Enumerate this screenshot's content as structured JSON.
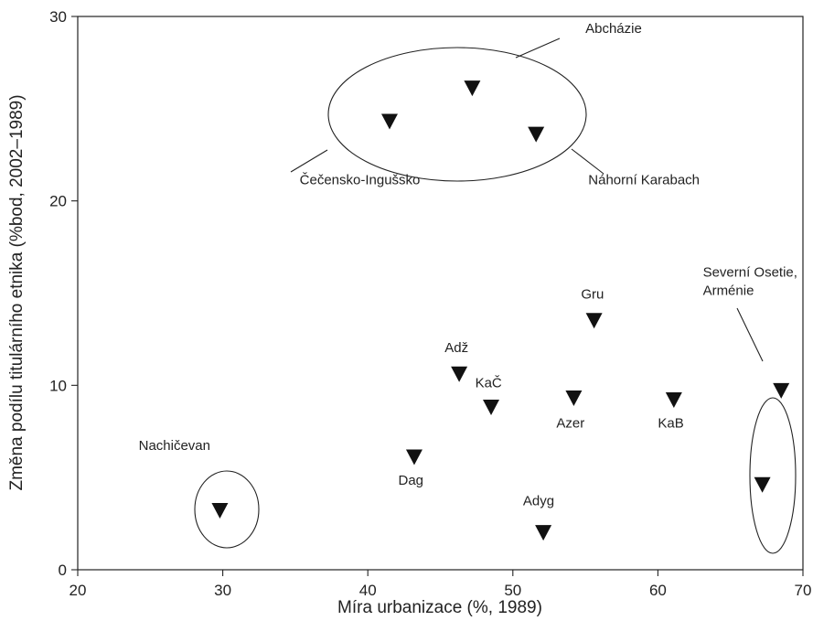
{
  "chart_data": {
    "type": "scatter",
    "xlabel": "Míra urbanizace (%, 1989)",
    "ylabel": "Změna podílu titulárního etnika (%bod, 2002–1989)",
    "xlim": [
      20,
      70
    ],
    "ylim": [
      0,
      30
    ],
    "xticks": [
      "20",
      "30",
      "40",
      "50",
      "60",
      "70"
    ],
    "yticks": [
      "0",
      "10",
      "20",
      "30"
    ],
    "marker": "inverted-triangle",
    "marker_color": "#111111",
    "grid": false,
    "points": [
      {
        "x": 29.8,
        "y": 3.2
      },
      {
        "x": 41.5,
        "y": 24.3
      },
      {
        "x": 43.2,
        "y": 6.1
      },
      {
        "x": 46.3,
        "y": 10.6
      },
      {
        "x": 47.2,
        "y": 26.1
      },
      {
        "x": 48.5,
        "y": 8.8
      },
      {
        "x": 51.6,
        "y": 23.6
      },
      {
        "x": 52.1,
        "y": 2.0
      },
      {
        "x": 54.2,
        "y": 9.3
      },
      {
        "x": 55.6,
        "y": 13.5
      },
      {
        "x": 61.1,
        "y": 9.2
      },
      {
        "x": 67.2,
        "y": 4.6
      },
      {
        "x": 68.5,
        "y": 9.7
      }
    ],
    "labels": [
      {
        "text": "Abcházie",
        "x": 55.0,
        "y": 29.1
      },
      {
        "text": "Čečensko-Ingušsko",
        "x": 35.3,
        "y": 20.9
      },
      {
        "text": "Náhorní Karabach",
        "x": 55.2,
        "y": 20.9
      },
      {
        "text": "Nachičevan",
        "x": 24.2,
        "y": 6.5
      },
      {
        "text": "Dag",
        "x": 42.1,
        "y": 4.6
      },
      {
        "text": "Adž",
        "x": 45.3,
        "y": 11.8
      },
      {
        "text": "KaČ",
        "x": 47.4,
        "y": 9.9
      },
      {
        "text": "Azer",
        "x": 53.0,
        "y": 7.7
      },
      {
        "text": "Gru",
        "x": 54.7,
        "y": 14.7
      },
      {
        "text": "KaB",
        "x": 60.0,
        "y": 7.7
      },
      {
        "text": "Adyg",
        "x": 50.7,
        "y": 3.5
      },
      {
        "text": "Severní Osetie,",
        "x": 63.1,
        "y": 15.9
      },
      {
        "text": "Arménie",
        "x": 63.1,
        "y": 14.9
      }
    ]
  }
}
